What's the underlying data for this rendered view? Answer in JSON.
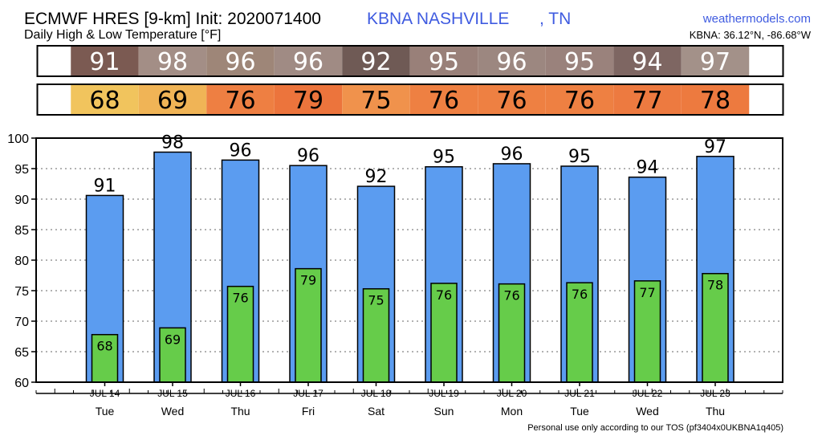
{
  "header": {
    "title": "ECMWF HRES [9-km] Init: 2020071400",
    "subtitle": "Daily High & Low Temperature [°F]",
    "station": "KBNA NASHVILLE",
    "state": ", TN",
    "site": "weathermodels.com",
    "coords": "KBNA: 36.12°N, -86.68°W"
  },
  "footer": "Personal use only according to our TOS (pf3404x0UKBNA1q405)",
  "colors": {
    "high_bar": "#5b9cf0",
    "low_bar": "#66cc4a",
    "high_strip_cells": [
      "#7b5a52",
      "#a38e86",
      "#9e8678",
      "#a08b84",
      "#6f5a55",
      "#998079",
      "#9c8780",
      "#9a827c",
      "#7e6662",
      "#a39189"
    ],
    "low_strip_cells": [
      "#f1c45d",
      "#f0b456",
      "#ee7f42",
      "#ec743c",
      "#f0924c",
      "#ee8042",
      "#ee8042",
      "#ee8042",
      "#ed7a40",
      "#ed7a3f"
    ]
  },
  "chart_data": {
    "type": "bar",
    "categories": [
      "JUL 14",
      "JUL 15",
      "JUL 16",
      "JUL 17",
      "JUL 18",
      "JUL 19",
      "JUL 20",
      "JUL 21",
      "JUL 22",
      "JUL 23"
    ],
    "weekdays": [
      "Tue",
      "Wed",
      "Thu",
      "Fri",
      "Sat",
      "Sun",
      "Mon",
      "Tue",
      "Wed",
      "Thu"
    ],
    "series": [
      {
        "values": [
          90.6,
          97.7,
          96.4,
          95.5,
          92.1,
          95.3,
          95.8,
          95.4,
          93.6,
          97.0
        ],
        "labels": [
          "91",
          "98",
          "96",
          "96",
          "92",
          "95",
          "96",
          "95",
          "94",
          "97"
        ]
      },
      {
        "values": [
          67.8,
          68.9,
          75.7,
          78.6,
          75.3,
          76.2,
          76.1,
          76.3,
          76.6,
          77.8
        ],
        "labels": [
          "68",
          "69",
          "76",
          "79",
          "75",
          "76",
          "76",
          "76",
          "77",
          "78"
        ]
      }
    ],
    "ylim": [
      60,
      100
    ],
    "yticks": [
      60,
      65,
      70,
      75,
      80,
      85,
      90,
      95,
      100
    ],
    "grid": true
  }
}
